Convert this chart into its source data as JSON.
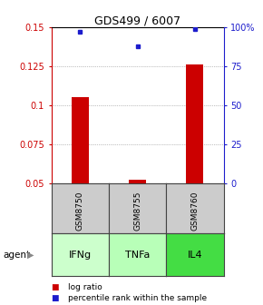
{
  "title": "GDS499 / 6007",
  "samples": [
    "GSM8750",
    "GSM8755",
    "GSM8760"
  ],
  "agents": [
    "IFNg",
    "TNFa",
    "IL4"
  ],
  "log_ratio": [
    0.105,
    0.052,
    0.126
  ],
  "percentile_rank_pct": [
    97,
    88,
    99
  ],
  "ylim_left": [
    0.05,
    0.15
  ],
  "ylim_right": [
    0,
    100
  ],
  "yticks_left": [
    0.05,
    0.075,
    0.1,
    0.125,
    0.15
  ],
  "yticks_right": [
    0,
    25,
    50,
    75,
    100
  ],
  "ytick_labels_left": [
    "0.05",
    "0.075",
    "0.1",
    "0.125",
    "0.15"
  ],
  "ytick_labels_right": [
    "0",
    "25",
    "50",
    "75",
    "100%"
  ],
  "bar_color": "#cc0000",
  "dot_color": "#1c1ccc",
  "grid_color": "#888888",
  "agent_colors": [
    "#ccffcc",
    "#b8ffb8",
    "#44dd44"
  ],
  "sample_bg": "#cccccc",
  "table_border": "#444444",
  "legend_log_color": "#cc0000",
  "legend_dot_color": "#1c1ccc",
  "bar_width": 0.3
}
